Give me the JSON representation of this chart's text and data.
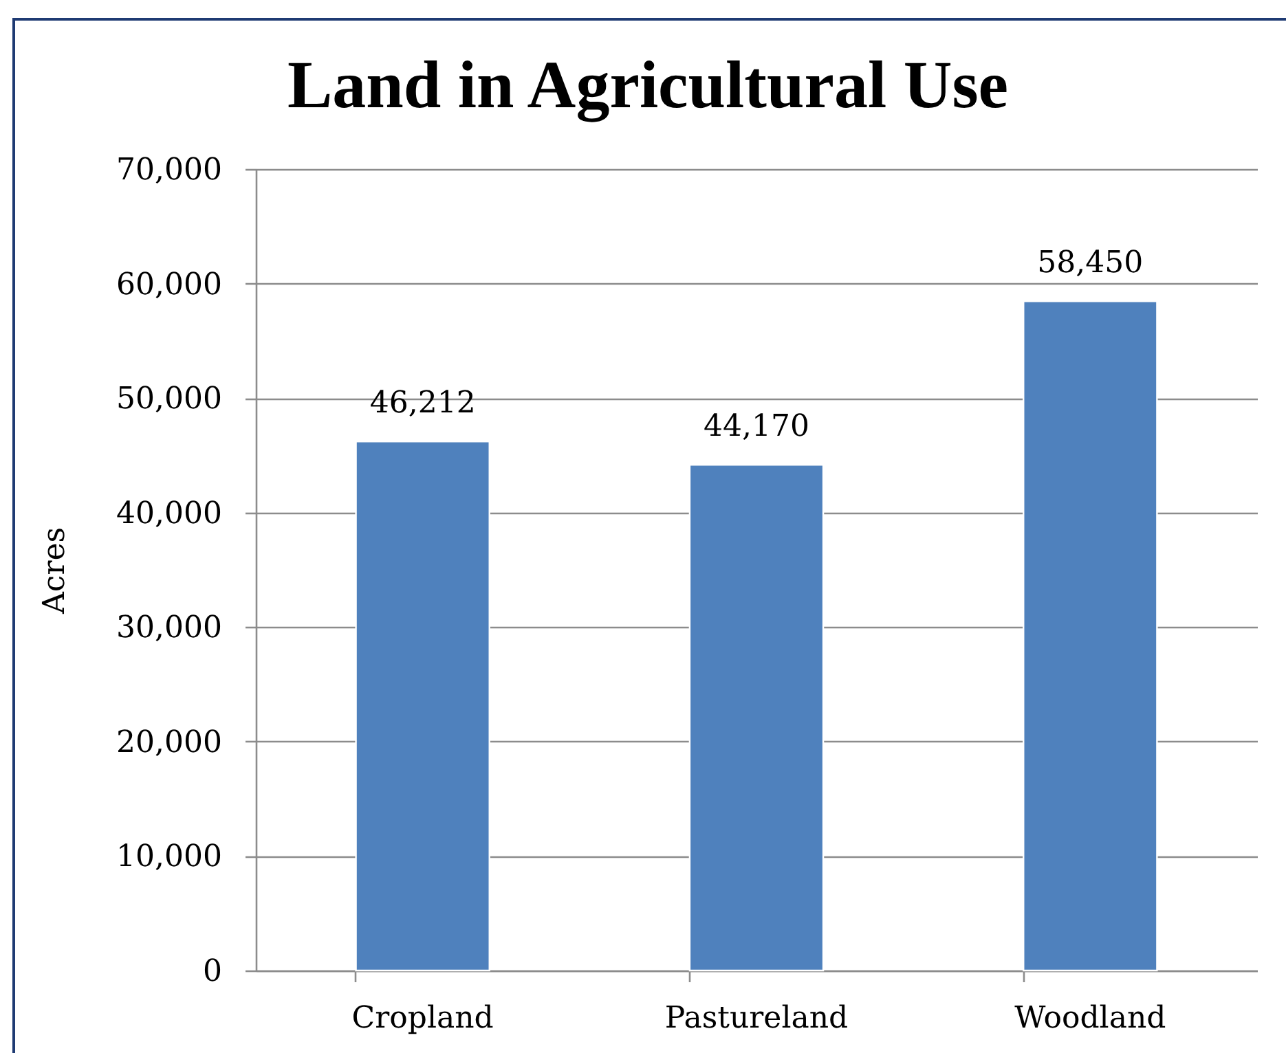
{
  "chart_data": {
    "type": "bar",
    "title": "Land in Agricultural Use",
    "ylabel": "Acres",
    "categories": [
      "Cropland",
      "Pastureland",
      "Woodland"
    ],
    "values": [
      46212,
      44170,
      58450
    ],
    "value_labels": [
      "46,212",
      "44,170",
      "58,450"
    ],
    "color": "#4f81bd",
    "ylim": [
      0,
      70000
    ],
    "yticks": [
      0,
      {
        "value": 10000,
        "label": "10,000"
      },
      {
        "value": 20000,
        "label": "20,000"
      },
      {
        "value": 30000,
        "label": "30,000"
      },
      {
        "value": 40000,
        "label": "40,000"
      },
      {
        "value": 50000,
        "label": "50,000"
      },
      {
        "value": 60000,
        "label": "60,000"
      },
      {
        "value": 70000,
        "label": "70,000"
      }
    ],
    "grid": "y"
  }
}
